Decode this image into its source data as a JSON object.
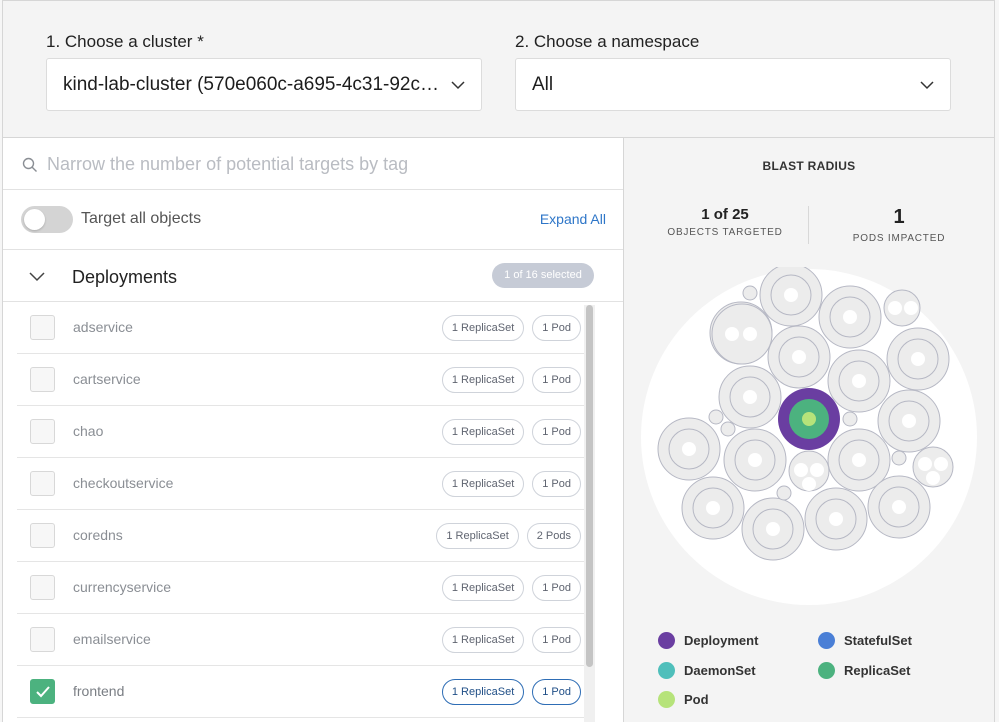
{
  "cluster": {
    "label": "1. Choose a cluster *",
    "value": "kind-lab-cluster (570e060c-a695-4c31-92c6-...",
    "icon": "chevron-down-icon"
  },
  "namespace": {
    "label": "2. Choose a namespace",
    "value": "All",
    "icon": "chevron-down-icon"
  },
  "search": {
    "placeholder": "Narrow the number of potential targets by tag",
    "icon": "search-icon"
  },
  "target_all": {
    "label": "Target all objects",
    "enabled": false
  },
  "expand_all": "Expand All",
  "group": {
    "title": "Deployments",
    "selected_badge": "1 of 16 selected",
    "expanded": true,
    "rows": [
      {
        "name": "adservice",
        "replicaset": "1 ReplicaSet",
        "pods": "1 Pod",
        "checked": false
      },
      {
        "name": "cartservice",
        "replicaset": "1 ReplicaSet",
        "pods": "1 Pod",
        "checked": false
      },
      {
        "name": "chao",
        "replicaset": "1 ReplicaSet",
        "pods": "1 Pod",
        "checked": false
      },
      {
        "name": "checkoutservice",
        "replicaset": "1 ReplicaSet",
        "pods": "1 Pod",
        "checked": false
      },
      {
        "name": "coredns",
        "replicaset": "1 ReplicaSet",
        "pods": "2 Pods",
        "checked": false
      },
      {
        "name": "currencyservice",
        "replicaset": "1 ReplicaSet",
        "pods": "1 Pod",
        "checked": false
      },
      {
        "name": "emailservice",
        "replicaset": "1 ReplicaSet",
        "pods": "1 Pod",
        "checked": false
      },
      {
        "name": "frontend",
        "replicaset": "1 ReplicaSet",
        "pods": "1 Pod",
        "checked": true
      }
    ]
  },
  "blast_radius": {
    "title": "BLAST RADIUS",
    "objects_targeted": "1 of 25",
    "objects_targeted_label": "OBJECTS TARGETED",
    "pods_impacted": "1",
    "pods_impacted_label": "PODS IMPACTED"
  },
  "legend": [
    {
      "label": "Deployment",
      "color": "#6a3ea1"
    },
    {
      "label": "StatefulSet",
      "color": "#4a7fd6"
    },
    {
      "label": "DaemonSet",
      "color": "#4fbfbb"
    },
    {
      "label": "ReplicaSet",
      "color": "#4cb27f"
    },
    {
      "label": "Pod",
      "color": "#b6e37a"
    }
  ],
  "colors": {
    "accent": "#2e76c8",
    "checkbox_checked": "#4cb27f",
    "deployment": "#6a3ea1",
    "replicaset": "#4cb27f",
    "pod": "#b6e37a"
  }
}
